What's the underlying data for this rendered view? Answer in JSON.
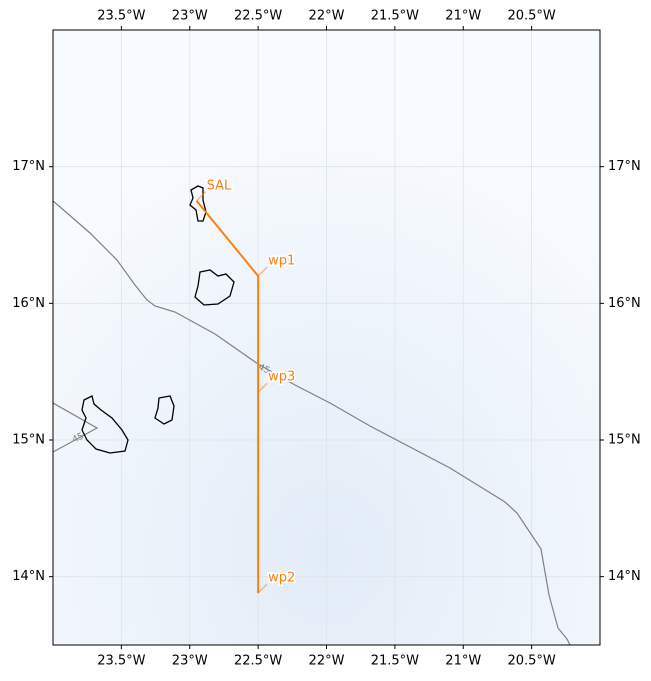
{
  "chart_data": {
    "type": "map",
    "xlim": [
      -24,
      -20
    ],
    "ylim": [
      13.5,
      18
    ],
    "xticks": [
      {
        "value": -23.5,
        "label": "23.5°W"
      },
      {
        "value": -23,
        "label": "23°W"
      },
      {
        "value": -22.5,
        "label": "22.5°W"
      },
      {
        "value": -22,
        "label": "22°W"
      },
      {
        "value": -21.5,
        "label": "21.5°W"
      },
      {
        "value": -21,
        "label": "21°W"
      },
      {
        "value": -20.5,
        "label": "20.5°W"
      }
    ],
    "yticks": [
      {
        "value": 14,
        "label": "14°N"
      },
      {
        "value": 15,
        "label": "15°N"
      },
      {
        "value": 16,
        "label": "16°N"
      },
      {
        "value": 17,
        "label": "17°N"
      }
    ],
    "grid": true,
    "route_color": "#ff7f0e",
    "waypoints": [
      {
        "name": "SAL",
        "lon": -22.95,
        "lat": 16.75
      },
      {
        "name": "wp1",
        "lon": -22.5,
        "lat": 16.2
      },
      {
        "name": "wp3",
        "lon": -22.5,
        "lat": 15.35
      },
      {
        "name": "wp2",
        "lon": -22.5,
        "lat": 13.88
      }
    ],
    "contours": [
      {
        "level": 45
      },
      {
        "level": 45
      }
    ]
  }
}
